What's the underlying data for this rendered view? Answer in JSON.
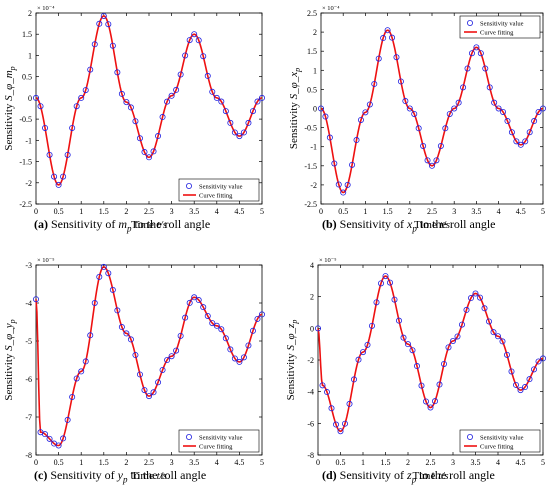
{
  "chart_data": [
    {
      "type": "scatter",
      "panel": "a",
      "ylabel": "Sensitivity  S_φ_m_p",
      "ylabel_parts": [
        "Sensitivity  ",
        "S_φ_m",
        "p"
      ],
      "xlabel": "Time t/s",
      "xlabel_parts": [
        "Time ",
        "t/s"
      ],
      "exponent_label": "× 10⁻⁴",
      "xlim": [
        0,
        5
      ],
      "ylim": [
        -2.5,
        2
      ],
      "x_ticks": [
        "0",
        "0.5",
        "1",
        "1.5",
        "2",
        "2.5",
        "3",
        "3.5",
        "4",
        "4.5",
        "5"
      ],
      "y_ticks": [
        "-2.5",
        "-2",
        "-1.5",
        "-1",
        "-0.5",
        "0",
        "0.5",
        "1",
        "1.5",
        "2"
      ],
      "legend": {
        "position": "bottom-right",
        "entries": [
          "Sensitivity value",
          "Curve fitting"
        ]
      },
      "caption": {
        "letter": "(a)",
        "before": " Sensitivity of ",
        "var": "m",
        "sub": "p",
        "after": " to the roll angle"
      },
      "series": [
        {
          "name": "Sensitivity value",
          "style": "markers",
          "x": [
            0,
            0.5,
            1.0,
            1.5,
            2.0,
            2.5,
            3.0,
            3.5,
            4.0,
            4.5,
            5.0
          ],
          "y": [
            0,
            -2.05,
            0.0,
            1.93,
            -0.1,
            -1.4,
            0.05,
            1.5,
            0.0,
            -0.9,
            0.0
          ]
        },
        {
          "name": "Curve fitting",
          "style": "line",
          "x": [
            0,
            0.5,
            1.0,
            1.5,
            2.0,
            2.5,
            3.0,
            3.5,
            4.0,
            4.5,
            5.0
          ],
          "y": [
            0,
            -2.05,
            0.0,
            1.93,
            -0.1,
            -1.4,
            0.05,
            1.5,
            0.0,
            -0.9,
            0.0
          ]
        }
      ]
    },
    {
      "type": "scatter",
      "panel": "b",
      "ylabel": "Sensitivity  S_φ_x_p",
      "ylabel_parts": [
        "Sensitivity  ",
        "S_φ_x",
        "p"
      ],
      "xlabel": "Time t/s",
      "xlabel_parts": [
        "Time ",
        "t/s"
      ],
      "exponent_label": "× 10⁻⁴",
      "xlim": [
        0,
        5
      ],
      "ylim": [
        -2.5,
        2.5
      ],
      "x_ticks": [
        "0",
        "0.5",
        "1",
        "1.5",
        "2",
        "2.5",
        "3",
        "3.5",
        "4",
        "4.5",
        "5"
      ],
      "y_ticks": [
        "-2.5",
        "-2",
        "-1.5",
        "-1",
        "-0.5",
        "0",
        "0.5",
        "1",
        "1.5",
        "2",
        "2.5"
      ],
      "legend": {
        "position": "top-right",
        "entries": [
          "Sensitivity value",
          "Curve fitting"
        ]
      },
      "caption": {
        "letter": "(b)",
        "before": " Sensitivity of ",
        "var": "x",
        "sub": "p",
        "after": " to the roll angle"
      },
      "series": [
        {
          "name": "Sensitivity value",
          "style": "markers",
          "x": [
            0,
            0.5,
            1.0,
            1.5,
            2.0,
            2.5,
            3.0,
            3.5,
            4.0,
            4.5,
            5.0
          ],
          "y": [
            0,
            -2.2,
            -0.1,
            2.05,
            0.0,
            -1.5,
            0.0,
            1.6,
            0.0,
            -0.95,
            0.0
          ]
        },
        {
          "name": "Curve fitting",
          "style": "line",
          "x": [
            0,
            0.5,
            1.0,
            1.5,
            2.0,
            2.5,
            3.0,
            3.5,
            4.0,
            4.5,
            5.0
          ],
          "y": [
            0,
            -2.2,
            -0.1,
            2.05,
            0.0,
            -1.5,
            0.0,
            1.6,
            0.0,
            -0.95,
            0.0
          ]
        }
      ]
    },
    {
      "type": "scatter",
      "panel": "c",
      "ylabel": "Sensitivity  S_φ_y_p",
      "ylabel_parts": [
        "Sensitivity  ",
        "S_φ_y",
        "p"
      ],
      "xlabel": "Time t/s",
      "xlabel_parts": [
        "Time ",
        "t/s"
      ],
      "exponent_label": "× 10⁻⁵",
      "xlim": [
        0,
        5
      ],
      "ylim": [
        -8,
        -3
      ],
      "x_ticks": [
        "0",
        "0.5",
        "1",
        "1.5",
        "2",
        "2.5",
        "3",
        "3.5",
        "4",
        "4.5",
        "5"
      ],
      "y_ticks": [
        "-8",
        "-7",
        "-6",
        "-5",
        "-4",
        "-3"
      ],
      "legend": {
        "position": "bottom-right",
        "entries": [
          "Sensitivity value",
          "Curve fitting"
        ]
      },
      "caption": {
        "letter": "(c)",
        "before": " Sensitivity of ",
        "var": "y",
        "sub": "p",
        "after": " to the roll angle"
      },
      "series": [
        {
          "name": "Sensitivity value",
          "style": "markers",
          "x": [
            0,
            0.1,
            0.5,
            1.0,
            1.5,
            2.0,
            2.5,
            3.0,
            3.5,
            4.0,
            4.5,
            5.0
          ],
          "y": [
            -3.9,
            -7.4,
            -7.75,
            -5.8,
            -3.05,
            -4.8,
            -6.45,
            -5.4,
            -3.85,
            -4.6,
            -5.55,
            -4.3
          ]
        },
        {
          "name": "Curve fitting",
          "style": "line",
          "x": [
            0,
            0.1,
            0.5,
            1.0,
            1.5,
            2.0,
            2.5,
            3.0,
            3.5,
            4.0,
            4.5,
            5.0
          ],
          "y": [
            -3.9,
            -7.4,
            -7.75,
            -5.8,
            -3.05,
            -4.8,
            -6.45,
            -5.4,
            -3.85,
            -4.6,
            -5.55,
            -4.3
          ]
        }
      ]
    },
    {
      "type": "scatter",
      "panel": "d",
      "ylabel": "Sensitivity  S_φ_z_p",
      "ylabel_parts": [
        "Sensitivity  ",
        "S_φ_z",
        "p"
      ],
      "xlabel": "Time t/s",
      "xlabel_parts": [
        "Time ",
        "t/s"
      ],
      "exponent_label": "× 10⁻⁵",
      "xlim": [
        0,
        5
      ],
      "ylim": [
        -8,
        4
      ],
      "x_ticks": [
        "0",
        "0.5",
        "1",
        "1.5",
        "2",
        "2.5",
        "3",
        "3.5",
        "4",
        "4.5",
        "5"
      ],
      "y_ticks": [
        "-8",
        "-6",
        "-4",
        "-2",
        "0",
        "2",
        "4"
      ],
      "legend": {
        "position": "bottom-right",
        "entries": [
          "Sensitivity value",
          "Curve fitting"
        ]
      },
      "caption": {
        "letter": "(d)",
        "before": " Sensitivity of ",
        "var": "z",
        "sub": "p",
        "after": " to the roll angle"
      },
      "series": [
        {
          "name": "Sensitivity value",
          "style": "markers",
          "x": [
            0,
            0.1,
            0.5,
            1.0,
            1.5,
            2.0,
            2.5,
            3.0,
            3.5,
            4.0,
            4.5,
            5.0
          ],
          "y": [
            0.0,
            -3.6,
            -6.5,
            -1.5,
            3.3,
            -1.0,
            -5.0,
            -0.8,
            2.2,
            -0.5,
            -3.9,
            -1.9
          ]
        },
        {
          "name": "Curve fitting",
          "style": "line",
          "x": [
            0,
            0.1,
            0.5,
            1.0,
            1.5,
            2.0,
            2.5,
            3.0,
            3.5,
            4.0,
            4.5,
            5.0
          ],
          "y": [
            0.0,
            -3.6,
            -6.5,
            -1.5,
            3.3,
            -1.0,
            -5.0,
            -0.8,
            2.2,
            -0.5,
            -3.9,
            -1.9
          ]
        }
      ]
    }
  ],
  "colors": {
    "markers": "#2020e0",
    "curve": "#ee1111",
    "axis": "#000000"
  }
}
